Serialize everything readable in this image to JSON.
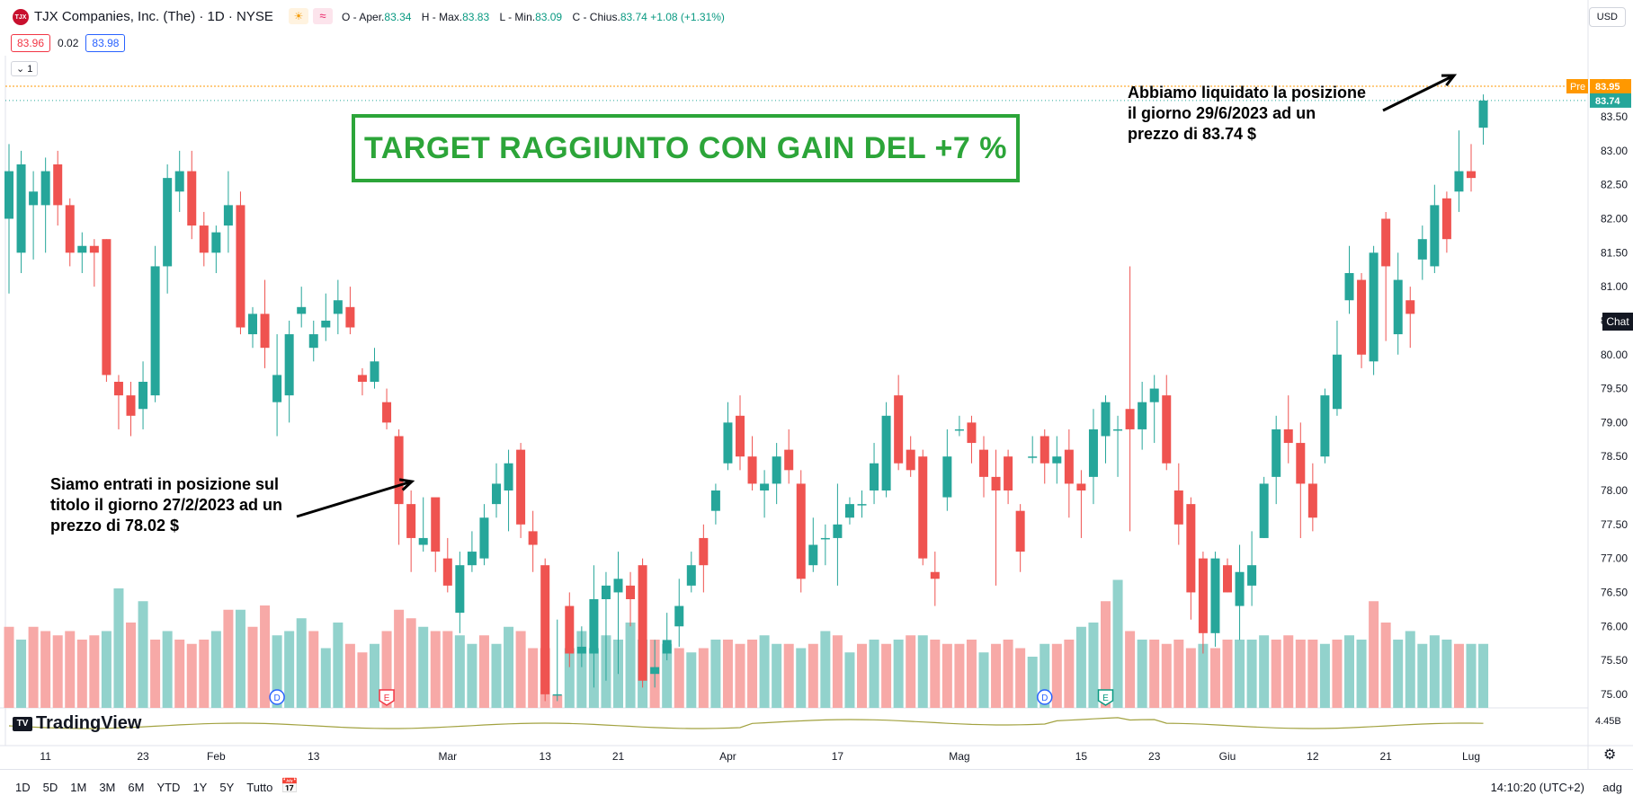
{
  "header": {
    "logo_text": "TJX",
    "symbol_title": "TJX Companies, Inc. (The) · 1D · NYSE",
    "ohlc": [
      {
        "key": "O",
        "label": "Aper.",
        "value": "83.34"
      },
      {
        "key": "H",
        "label": "Max.",
        "value": "83.83"
      },
      {
        "key": "L",
        "label": "Min.",
        "value": "83.09"
      },
      {
        "key": "C",
        "label": "Chius.",
        "value": "83.74"
      }
    ],
    "change": "+1.08 (+1.31%)",
    "bid": "83.96",
    "spread": "0.02",
    "ask": "83.98",
    "collapse_label": "1",
    "currency": "USD"
  },
  "annotations": {
    "target": "TARGET RAGGIUNTO CON GAIN DEL +7 %",
    "entry": [
      "Siamo entrati in posizione sul",
      "titolo il giorno 27/2/2023 ad un",
      "prezzo di 78.02 $"
    ],
    "exit": [
      "Abbiamo liquidato la posizione",
      "il giorno 29/6/2023 ad un",
      "prezzo di 83.74 $"
    ]
  },
  "price_tags": {
    "pre_label": "Pre",
    "pre_value": "83.95",
    "last_value": "83.74",
    "volume_value": "4.45B",
    "chat": "Chat"
  },
  "footer": {
    "brand": "TradingView",
    "ranges": [
      "1D",
      "5D",
      "1M",
      "3M",
      "6M",
      "YTD",
      "1Y",
      "5Y",
      "Tutto"
    ],
    "clock": "14:10:20 (UTC+2)",
    "adj": "adg"
  },
  "colors": {
    "up": "#26a69a",
    "down": "#ef5350",
    "up_vol": "#92d2cc",
    "down_vol": "#f7a9a7",
    "target_green": "#2ca539",
    "pre_orange": "#ff9800"
  },
  "chart_data": {
    "type": "candlestick",
    "ylim": [
      74.8,
      84.4
    ],
    "y_ticks": [
      "84.00",
      "83.50",
      "83.00",
      "82.50",
      "82.00",
      "81.50",
      "81.00",
      "80.50",
      "80.00",
      "79.50",
      "79.00",
      "78.50",
      "78.00",
      "77.50",
      "77.00",
      "76.50",
      "76.00",
      "75.50",
      "75.00"
    ],
    "x_ticks": [
      {
        "label": "11",
        "i": 3
      },
      {
        "label": "23",
        "i": 11
      },
      {
        "label": "Feb",
        "i": 17
      },
      {
        "label": "13",
        "i": 25
      },
      {
        "label": "Mar",
        "i": 36
      },
      {
        "label": "13",
        "i": 44
      },
      {
        "label": "21",
        "i": 50
      },
      {
        "label": "Apr",
        "i": 59
      },
      {
        "label": "17",
        "i": 68
      },
      {
        "label": "Mag",
        "i": 78
      },
      {
        "label": "15",
        "i": 88
      },
      {
        "label": "23",
        "i": 94
      },
      {
        "label": "Giu",
        "i": 100
      },
      {
        "label": "12",
        "i": 107
      },
      {
        "label": "21",
        "i": 113
      },
      {
        "label": "Lug",
        "i": 120
      }
    ],
    "events": [
      {
        "label": "D",
        "i": 22,
        "kind": "dividend"
      },
      {
        "label": "E",
        "i": 31,
        "kind": "earnings-red"
      },
      {
        "label": "D",
        "i": 85,
        "kind": "dividend"
      },
      {
        "label": "E",
        "i": 90,
        "kind": "earnings-green"
      }
    ],
    "candles": [
      [
        82.0,
        82.7,
        83.1,
        80.9
      ],
      [
        81.5,
        82.8,
        83.0,
        81.2
      ],
      [
        82.2,
        82.4,
        82.7,
        81.4
      ],
      [
        82.2,
        82.7,
        82.9,
        81.5
      ],
      [
        82.8,
        82.2,
        83.0,
        81.9
      ],
      [
        82.2,
        81.5,
        82.3,
        81.3
      ],
      [
        81.5,
        81.6,
        81.8,
        81.2
      ],
      [
        81.6,
        81.5,
        81.7,
        81.0
      ],
      [
        81.7,
        79.7,
        81.7,
        79.6
      ],
      [
        79.6,
        79.4,
        79.7,
        78.9
      ],
      [
        79.4,
        79.1,
        79.6,
        78.8
      ],
      [
        79.2,
        79.6,
        79.9,
        78.9
      ],
      [
        79.4,
        81.3,
        81.6,
        79.3
      ],
      [
        81.3,
        82.6,
        82.8,
        80.9
      ],
      [
        82.4,
        82.7,
        83.0,
        82.1
      ],
      [
        82.7,
        81.9,
        83.0,
        81.7
      ],
      [
        81.9,
        81.5,
        82.1,
        81.3
      ],
      [
        81.5,
        81.8,
        81.9,
        81.2
      ],
      [
        81.9,
        82.2,
        82.7,
        81.5
      ],
      [
        82.2,
        80.4,
        82.4,
        80.3
      ],
      [
        80.3,
        80.6,
        80.7,
        80.1
      ],
      [
        80.6,
        80.1,
        81.1,
        79.8
      ],
      [
        79.3,
        79.7,
        80.3,
        78.8
      ],
      [
        79.4,
        80.3,
        80.5,
        79.0
      ],
      [
        80.6,
        80.7,
        81.0,
        80.4
      ],
      [
        80.1,
        80.3,
        80.5,
        79.9
      ],
      [
        80.4,
        80.5,
        80.9,
        80.2
      ],
      [
        80.6,
        80.8,
        81.1,
        80.3
      ],
      [
        80.7,
        80.4,
        81.0,
        80.3
      ],
      [
        79.7,
        79.6,
        79.8,
        79.4
      ],
      [
        79.6,
        79.9,
        80.1,
        79.5
      ],
      [
        79.3,
        79.0,
        79.5,
        78.9
      ],
      [
        78.8,
        77.8,
        78.9,
        77.2
      ],
      [
        77.8,
        77.3,
        78.0,
        76.8
      ],
      [
        77.2,
        77.3,
        77.9,
        77.1
      ],
      [
        77.9,
        77.1,
        77.8,
        76.8
      ],
      [
        77.0,
        76.6,
        77.3,
        76.5
      ],
      [
        76.2,
        76.9,
        77.1,
        75.9
      ],
      [
        76.9,
        77.1,
        77.4,
        76.8
      ],
      [
        77.0,
        77.6,
        77.8,
        76.9
      ],
      [
        77.8,
        78.1,
        78.4,
        77.6
      ],
      [
        78.0,
        78.4,
        78.6,
        77.4
      ],
      [
        78.6,
        77.5,
        78.7,
        77.3
      ],
      [
        77.4,
        77.2,
        77.7,
        76.8
      ],
      [
        76.9,
        75.0,
        77.0,
        74.9
      ],
      [
        75.0,
        75.0,
        76.1,
        74.9
      ],
      [
        76.3,
        75.6,
        76.5,
        75.4
      ],
      [
        75.6,
        75.7,
        76.0,
        75.4
      ],
      [
        75.6,
        76.4,
        76.9,
        75.1
      ],
      [
        76.4,
        76.6,
        76.8,
        75.2
      ],
      [
        76.5,
        76.7,
        77.1,
        75.3
      ],
      [
        76.6,
        76.4,
        76.8,
        76.0
      ],
      [
        76.9,
        75.2,
        77.0,
        75.1
      ],
      [
        75.3,
        75.4,
        75.8,
        75.1
      ],
      [
        75.6,
        75.8,
        76.2,
        75.5
      ],
      [
        76.0,
        76.3,
        76.7,
        75.7
      ],
      [
        76.6,
        76.9,
        77.1,
        76.5
      ],
      [
        77.3,
        76.9,
        77.5,
        76.5
      ],
      [
        77.7,
        78.0,
        78.1,
        77.5
      ],
      [
        78.4,
        79.0,
        79.3,
        78.3
      ],
      [
        79.1,
        78.5,
        79.4,
        78.3
      ],
      [
        78.5,
        78.1,
        78.8,
        78.0
      ],
      [
        78.0,
        78.1,
        78.3,
        77.6
      ],
      [
        78.1,
        78.5,
        78.7,
        77.8
      ],
      [
        78.6,
        78.3,
        78.9,
        78.1
      ],
      [
        78.1,
        76.7,
        78.3,
        76.5
      ],
      [
        76.9,
        77.2,
        77.6,
        76.8
      ],
      [
        77.3,
        77.3,
        77.5,
        76.9
      ],
      [
        77.3,
        77.5,
        78.1,
        76.6
      ],
      [
        77.6,
        77.8,
        77.9,
        77.5
      ],
      [
        77.8,
        77.8,
        78.0,
        77.6
      ],
      [
        78.0,
        78.4,
        78.7,
        77.8
      ],
      [
        78.0,
        79.1,
        79.3,
        77.9
      ],
      [
        79.4,
        78.4,
        79.7,
        78.3
      ],
      [
        78.6,
        78.3,
        78.8,
        78.2
      ],
      [
        78.5,
        77.0,
        78.6,
        76.9
      ],
      [
        76.8,
        76.7,
        77.1,
        76.3
      ],
      [
        77.9,
        78.5,
        78.9,
        77.7
      ],
      [
        78.9,
        78.9,
        79.1,
        78.8
      ],
      [
        79.0,
        78.7,
        79.1,
        78.4
      ],
      [
        78.6,
        78.2,
        78.8,
        77.9
      ],
      [
        78.2,
        78.0,
        78.6,
        76.6
      ],
      [
        78.5,
        78.0,
        78.6,
        77.8
      ],
      [
        77.7,
        77.1,
        77.8,
        76.8
      ],
      [
        78.5,
        78.5,
        78.8,
        78.4
      ],
      [
        78.8,
        78.4,
        78.9,
        78.1
      ],
      [
        78.4,
        78.5,
        78.8,
        78.1
      ],
      [
        78.6,
        78.1,
        78.9,
        77.6
      ],
      [
        78.1,
        78.0,
        78.3,
        77.3
      ],
      [
        78.2,
        78.9,
        79.2,
        77.8
      ],
      [
        78.8,
        79.3,
        79.4,
        78.4
      ],
      [
        78.9,
        78.9,
        79.1,
        78.2
      ],
      [
        79.2,
        78.9,
        81.3,
        77.4
      ],
      [
        78.9,
        79.3,
        79.6,
        78.6
      ],
      [
        79.3,
        79.5,
        79.7,
        78.7
      ],
      [
        79.4,
        78.4,
        79.7,
        78.3
      ],
      [
        78.0,
        77.5,
        78.4,
        77.2
      ],
      [
        77.8,
        76.5,
        77.9,
        76.1
      ],
      [
        77.0,
        75.9,
        77.1,
        75.6
      ],
      [
        75.9,
        77.0,
        77.1,
        75.7
      ],
      [
        76.9,
        76.5,
        77.0,
        76.5
      ],
      [
        76.3,
        76.8,
        77.2,
        75.8
      ],
      [
        76.6,
        76.9,
        77.4,
        76.3
      ],
      [
        77.3,
        78.1,
        78.2,
        77.3
      ],
      [
        78.2,
        78.9,
        79.1,
        77.8
      ],
      [
        78.9,
        78.7,
        79.4,
        78.4
      ],
      [
        78.7,
        78.1,
        79.0,
        77.3
      ],
      [
        78.1,
        77.6,
        78.4,
        77.4
      ],
      [
        78.5,
        79.4,
        79.5,
        78.4
      ],
      [
        79.2,
        80.0,
        80.5,
        79.1
      ],
      [
        80.8,
        81.2,
        81.6,
        80.6
      ],
      [
        81.1,
        80.0,
        81.2,
        79.8
      ],
      [
        79.9,
        81.5,
        81.6,
        79.7
      ],
      [
        82.0,
        81.3,
        82.1,
        80.2
      ],
      [
        80.3,
        81.1,
        81.5,
        80.0
      ],
      [
        80.8,
        80.6,
        81.0,
        80.1
      ],
      [
        81.4,
        81.7,
        81.9,
        81.1
      ],
      [
        81.3,
        82.2,
        82.5,
        81.2
      ],
      [
        82.3,
        81.7,
        82.4,
        81.5
      ],
      [
        82.4,
        82.7,
        83.3,
        82.1
      ],
      [
        82.7,
        82.6,
        83.1,
        82.4
      ],
      [
        83.34,
        83.74,
        83.83,
        83.09
      ]
    ],
    "volume": [
      [
        1.9,
        "d"
      ],
      [
        1.6,
        "u"
      ],
      [
        1.9,
        "d"
      ],
      [
        1.8,
        "d"
      ],
      [
        1.7,
        "d"
      ],
      [
        1.8,
        "d"
      ],
      [
        1.6,
        "d"
      ],
      [
        1.7,
        "d"
      ],
      [
        1.8,
        "u"
      ],
      [
        2.8,
        "u"
      ],
      [
        2.0,
        "d"
      ],
      [
        2.5,
        "u"
      ],
      [
        1.6,
        "d"
      ],
      [
        1.8,
        "u"
      ],
      [
        1.6,
        "d"
      ],
      [
        1.5,
        "d"
      ],
      [
        1.6,
        "d"
      ],
      [
        1.8,
        "u"
      ],
      [
        2.3,
        "d"
      ],
      [
        2.3,
        "u"
      ],
      [
        1.9,
        "d"
      ],
      [
        2.4,
        "d"
      ],
      [
        1.7,
        "u"
      ],
      [
        1.8,
        "u"
      ],
      [
        2.1,
        "u"
      ],
      [
        1.8,
        "d"
      ],
      [
        1.4,
        "u"
      ],
      [
        2.0,
        "u"
      ],
      [
        1.5,
        "d"
      ],
      [
        1.3,
        "d"
      ],
      [
        1.5,
        "u"
      ],
      [
        1.8,
        "d"
      ],
      [
        2.3,
        "d"
      ],
      [
        2.1,
        "d"
      ],
      [
        1.9,
        "u"
      ],
      [
        1.8,
        "d"
      ],
      [
        1.8,
        "d"
      ],
      [
        1.7,
        "u"
      ],
      [
        1.5,
        "u"
      ],
      [
        1.7,
        "d"
      ],
      [
        1.5,
        "u"
      ],
      [
        1.9,
        "u"
      ],
      [
        1.8,
        "d"
      ],
      [
        1.4,
        "d"
      ],
      [
        1.4,
        "d"
      ],
      [
        0.3,
        "d"
      ],
      [
        1.4,
        "u"
      ],
      [
        1.8,
        "u"
      ],
      [
        1.4,
        "u"
      ],
      [
        1.7,
        "u"
      ],
      [
        1.6,
        "u"
      ],
      [
        2.0,
        "u"
      ],
      [
        1.6,
        "u"
      ],
      [
        1.6,
        "d"
      ],
      [
        1.5,
        "u"
      ],
      [
        1.4,
        "d"
      ],
      [
        1.3,
        "u"
      ],
      [
        1.4,
        "d"
      ],
      [
        1.6,
        "u"
      ],
      [
        1.6,
        "d"
      ],
      [
        1.5,
        "d"
      ],
      [
        1.6,
        "d"
      ],
      [
        1.7,
        "u"
      ],
      [
        1.5,
        "u"
      ],
      [
        1.5,
        "d"
      ],
      [
        1.4,
        "u"
      ],
      [
        1.5,
        "d"
      ],
      [
        1.8,
        "u"
      ],
      [
        1.7,
        "d"
      ],
      [
        1.3,
        "u"
      ],
      [
        1.5,
        "d"
      ],
      [
        1.6,
        "u"
      ],
      [
        1.5,
        "d"
      ],
      [
        1.6,
        "u"
      ],
      [
        1.7,
        "d"
      ],
      [
        1.7,
        "u"
      ],
      [
        1.6,
        "d"
      ],
      [
        1.5,
        "d"
      ],
      [
        1.5,
        "d"
      ],
      [
        1.6,
        "d"
      ],
      [
        1.3,
        "u"
      ],
      [
        1.5,
        "d"
      ],
      [
        1.6,
        "d"
      ],
      [
        1.4,
        "d"
      ],
      [
        1.2,
        "u"
      ],
      [
        1.5,
        "u"
      ],
      [
        1.5,
        "d"
      ],
      [
        1.6,
        "d"
      ],
      [
        1.9,
        "u"
      ],
      [
        2.0,
        "u"
      ],
      [
        2.5,
        "d"
      ],
      [
        3.0,
        "u"
      ],
      [
        1.8,
        "d"
      ],
      [
        1.6,
        "u"
      ],
      [
        1.6,
        "d"
      ],
      [
        1.5,
        "d"
      ],
      [
        1.6,
        "d"
      ],
      [
        1.4,
        "d"
      ],
      [
        1.5,
        "u"
      ],
      [
        1.4,
        "d"
      ],
      [
        1.6,
        "d"
      ],
      [
        1.6,
        "u"
      ],
      [
        1.6,
        "u"
      ],
      [
        1.7,
        "u"
      ],
      [
        1.6,
        "d"
      ],
      [
        1.7,
        "d"
      ],
      [
        1.6,
        "d"
      ],
      [
        1.6,
        "d"
      ],
      [
        1.5,
        "u"
      ],
      [
        1.6,
        "d"
      ],
      [
        1.7,
        "u"
      ],
      [
        1.6,
        "u"
      ],
      [
        2.5,
        "d"
      ],
      [
        2.0,
        "d"
      ],
      [
        1.6,
        "u"
      ],
      [
        1.8,
        "u"
      ],
      [
        1.5,
        "u"
      ],
      [
        1.7,
        "u"
      ],
      [
        1.6,
        "u"
      ],
      [
        1.5,
        "d"
      ],
      [
        1.5,
        "u"
      ],
      [
        1.5,
        "u"
      ]
    ]
  }
}
